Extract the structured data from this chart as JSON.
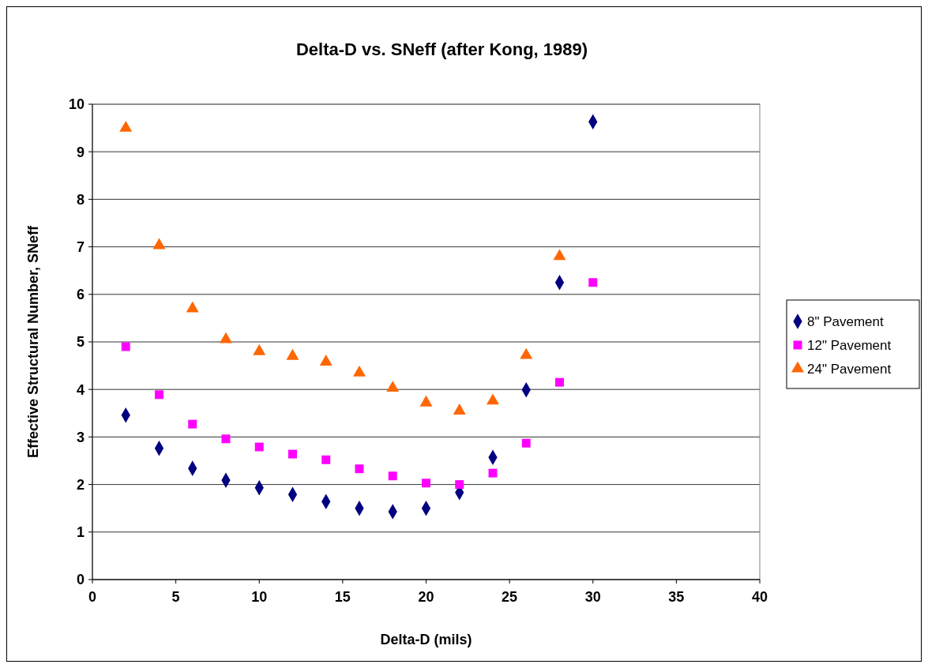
{
  "chart_data": {
    "type": "scatter",
    "title": "Delta-D vs. SNeff (after Kong, 1989)",
    "xlabel": "Delta-D (mils)",
    "ylabel": "Effective Structural Number, SNeff",
    "x": [
      2,
      4,
      6,
      8,
      10,
      12,
      14,
      16,
      18,
      20,
      22,
      24,
      26,
      28,
      30
    ],
    "xlim": [
      0,
      40
    ],
    "xticks": [
      0,
      5,
      10,
      15,
      20,
      25,
      30,
      35,
      40
    ],
    "ylim": [
      0,
      10
    ],
    "yticks": [
      0,
      1,
      2,
      3,
      4,
      5,
      6,
      7,
      8,
      9,
      10
    ],
    "grid": "y",
    "legend": "right",
    "series": [
      {
        "name": "8\" Pavement",
        "color": "#000080",
        "marker": "diamond",
        "values": [
          3.46,
          2.76,
          2.34,
          2.09,
          1.93,
          1.79,
          1.64,
          1.5,
          1.43,
          1.5,
          1.83,
          2.57,
          3.99,
          6.25,
          9.63
        ]
      },
      {
        "name": "12\" Pavement",
        "color": "#ff00ff",
        "marker": "square",
        "values": [
          4.9,
          3.89,
          3.27,
          2.96,
          2.79,
          2.64,
          2.52,
          2.33,
          2.18,
          2.03,
          2.0,
          2.24,
          2.87,
          4.15,
          6.25
        ]
      },
      {
        "name": "24\" Pavement",
        "color": "#ff6600",
        "marker": "triangle",
        "values": [
          9.5,
          7.03,
          5.7,
          5.05,
          4.8,
          4.7,
          4.58,
          4.35,
          4.03,
          3.72,
          3.55,
          3.76,
          4.72,
          6.8,
          null
        ]
      }
    ]
  }
}
